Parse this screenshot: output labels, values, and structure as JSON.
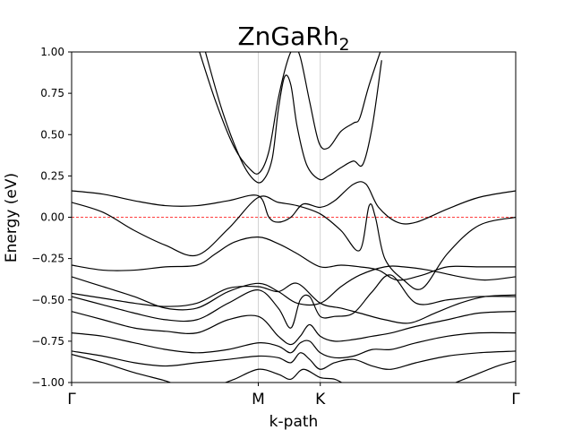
{
  "chart_data": {
    "type": "line",
    "title": "ZnGaRh",
    "title_subscript": "2",
    "xlabel": "k-path",
    "ylabel": "Energy (eV)",
    "ylim": [
      -1.0,
      1.0
    ],
    "yticks": [
      "1.00",
      "0.75",
      "0.50",
      "0.25",
      "0.00",
      "−0.25",
      "−0.50",
      "−0.75",
      "−1.00"
    ],
    "ytick_values": [
      1.0,
      0.75,
      0.5,
      0.25,
      0.0,
      -0.25,
      -0.5,
      -0.75,
      -1.0
    ],
    "xlim": [
      0,
      7.09
    ],
    "xticks": [
      {
        "label": "Γ",
        "value": 0
      },
      {
        "label": "M",
        "value": 2.98
      },
      {
        "label": "K",
        "value": 3.97
      },
      {
        "label": "Γ",
        "value": 7.09
      }
    ],
    "high_symmetry_vlines": [
      2.98,
      3.97
    ],
    "fermi_level": 0.0,
    "fermi_color": "#ff0000",
    "band_color": "#000000",
    "grid": false,
    "series": [
      {
        "x": [
          2.0,
          2.3,
          2.6,
          2.85,
          3.0,
          3.15,
          3.3,
          3.45,
          3.55,
          3.65,
          3.8,
          3.95,
          4.1,
          4.3,
          4.5,
          4.6,
          4.75,
          5.0
        ],
        "values": [
          1.05,
          0.7,
          0.42,
          0.29,
          0.27,
          0.4,
          0.72,
          0.95,
          1.02,
          0.97,
          0.7,
          0.45,
          0.42,
          0.52,
          0.57,
          0.6,
          0.8,
          1.08
        ]
      },
      {
        "x": [
          2.1,
          2.4,
          2.7,
          2.9,
          3.05,
          3.2,
          3.3,
          3.4,
          3.5,
          3.6,
          3.75,
          3.95,
          4.1,
          4.3,
          4.5,
          4.65,
          4.8,
          4.95
        ],
        "values": [
          1.05,
          0.65,
          0.35,
          0.23,
          0.22,
          0.35,
          0.65,
          0.85,
          0.8,
          0.55,
          0.32,
          0.23,
          0.25,
          0.3,
          0.34,
          0.32,
          0.55,
          0.95
        ]
      },
      {
        "x": [
          0.0,
          0.5,
          1.0,
          1.5,
          2.0,
          2.5,
          2.98,
          3.15,
          3.3,
          3.5,
          3.7,
          3.97,
          4.2,
          4.5,
          4.7,
          4.9,
          5.2,
          5.5,
          6.0,
          6.5,
          7.09
        ],
        "values": [
          0.16,
          0.14,
          0.1,
          0.07,
          0.07,
          0.1,
          0.13,
          0.0,
          -0.03,
          0.0,
          0.08,
          0.06,
          0.1,
          0.2,
          0.2,
          0.06,
          -0.03,
          -0.03,
          0.05,
          0.12,
          0.16
        ]
      },
      {
        "x": [
          0.0,
          0.5,
          1.0,
          1.5,
          2.0,
          2.5,
          2.98,
          3.3,
          3.6,
          3.97,
          4.3,
          4.6,
          4.75,
          4.85,
          5.0,
          5.3,
          5.6,
          6.0,
          6.5,
          7.09
        ],
        "values": [
          0.09,
          0.03,
          -0.08,
          -0.17,
          -0.23,
          -0.07,
          0.12,
          0.09,
          0.07,
          0.02,
          -0.08,
          -0.2,
          0.07,
          0.0,
          -0.25,
          -0.38,
          -0.43,
          -0.22,
          -0.05,
          0.0
        ]
      },
      {
        "x": [
          0.0,
          0.5,
          1.0,
          1.5,
          2.0,
          2.3,
          2.6,
          2.98,
          3.3,
          3.6,
          3.97,
          4.3,
          4.6,
          4.9,
          5.2,
          5.6,
          6.0,
          6.5,
          7.09
        ],
        "values": [
          -0.29,
          -0.32,
          -0.32,
          -0.3,
          -0.29,
          -0.22,
          -0.15,
          -0.12,
          -0.16,
          -0.22,
          -0.3,
          -0.29,
          -0.3,
          -0.32,
          -0.38,
          -0.35,
          -0.3,
          -0.3,
          -0.3
        ]
      },
      {
        "x": [
          0.0,
          0.5,
          1.0,
          1.5,
          2.0,
          2.5,
          2.98,
          3.3,
          3.6,
          3.97,
          4.3,
          4.6,
          5.0,
          5.3,
          5.7,
          6.2,
          6.6,
          7.09
        ],
        "values": [
          -0.36,
          -0.42,
          -0.48,
          -0.55,
          -0.55,
          -0.45,
          -0.4,
          -0.45,
          -0.52,
          -0.52,
          -0.42,
          -0.35,
          -0.3,
          -0.3,
          -0.32,
          -0.36,
          -0.38,
          -0.36
        ]
      },
      {
        "x": [
          0.0,
          0.5,
          1.0,
          1.5,
          2.0,
          2.5,
          2.98,
          3.3,
          3.6,
          3.97,
          4.3,
          4.6,
          5.0,
          5.4,
          5.8,
          6.2,
          6.6,
          7.09
        ],
        "values": [
          -0.46,
          -0.49,
          -0.52,
          -0.54,
          -0.52,
          -0.43,
          -0.42,
          -0.45,
          -0.4,
          -0.52,
          -0.55,
          -0.58,
          -0.62,
          -0.64,
          -0.58,
          -0.52,
          -0.48,
          -0.47
        ]
      },
      {
        "x": [
          0.0,
          0.5,
          1.0,
          1.5,
          2.0,
          2.5,
          2.98,
          3.3,
          3.5,
          3.65,
          3.8,
          3.97,
          4.2,
          4.5,
          4.8,
          5.1,
          5.5,
          6.0,
          6.5,
          7.09
        ],
        "values": [
          -0.48,
          -0.53,
          -0.58,
          -0.62,
          -0.62,
          -0.52,
          -0.44,
          -0.55,
          -0.67,
          -0.5,
          -0.48,
          -0.6,
          -0.6,
          -0.58,
          -0.45,
          -0.35,
          -0.52,
          -0.5,
          -0.48,
          -0.48
        ]
      },
      {
        "x": [
          0.0,
          0.5,
          1.0,
          1.5,
          2.0,
          2.5,
          2.98,
          3.3,
          3.5,
          3.65,
          3.8,
          3.97,
          4.2,
          4.5,
          4.8,
          5.1,
          5.5,
          6.0,
          6.5,
          7.09
        ],
        "values": [
          -0.57,
          -0.62,
          -0.67,
          -0.69,
          -0.7,
          -0.62,
          -0.6,
          -0.72,
          -0.77,
          -0.72,
          -0.65,
          -0.72,
          -0.75,
          -0.74,
          -0.72,
          -0.7,
          -0.66,
          -0.62,
          -0.58,
          -0.57
        ]
      },
      {
        "x": [
          0.0,
          0.5,
          1.0,
          1.5,
          2.0,
          2.5,
          2.98,
          3.3,
          3.5,
          3.65,
          3.8,
          3.97,
          4.2,
          4.5,
          4.8,
          5.1,
          5.5,
          6.0,
          6.5,
          7.09
        ],
        "values": [
          -0.7,
          -0.72,
          -0.76,
          -0.8,
          -0.82,
          -0.8,
          -0.76,
          -0.78,
          -0.82,
          -0.76,
          -0.75,
          -0.82,
          -0.85,
          -0.84,
          -0.8,
          -0.8,
          -0.76,
          -0.72,
          -0.7,
          -0.7
        ]
      },
      {
        "x": [
          0.0,
          0.5,
          1.0,
          1.5,
          2.0,
          2.5,
          2.98,
          3.3,
          3.5,
          3.65,
          3.8,
          3.97,
          4.2,
          4.5,
          4.8,
          5.1,
          5.5,
          6.0,
          6.5,
          7.09
        ],
        "values": [
          -0.81,
          -0.84,
          -0.88,
          -0.9,
          -0.88,
          -0.86,
          -0.84,
          -0.85,
          -0.88,
          -0.82,
          -0.86,
          -0.92,
          -0.88,
          -0.86,
          -0.9,
          -0.92,
          -0.88,
          -0.84,
          -0.82,
          -0.81
        ]
      },
      {
        "x": [
          0.0,
          0.5,
          1.0,
          1.5,
          1.7
        ],
        "values": [
          -0.83,
          -0.88,
          -0.94,
          -0.99,
          -1.02
        ]
      },
      {
        "x": [
          2.3,
          2.6,
          2.98,
          3.3,
          3.5,
          3.7,
          3.97,
          4.2,
          4.4
        ],
        "values": [
          -1.02,
          -0.98,
          -0.92,
          -0.95,
          -0.98,
          -0.92,
          -0.97,
          -0.98,
          -1.02
        ]
      },
      {
        "x": [
          6.0,
          6.4,
          6.8,
          7.09
        ],
        "values": [
          -1.02,
          -0.96,
          -0.9,
          -0.87
        ]
      }
    ]
  }
}
